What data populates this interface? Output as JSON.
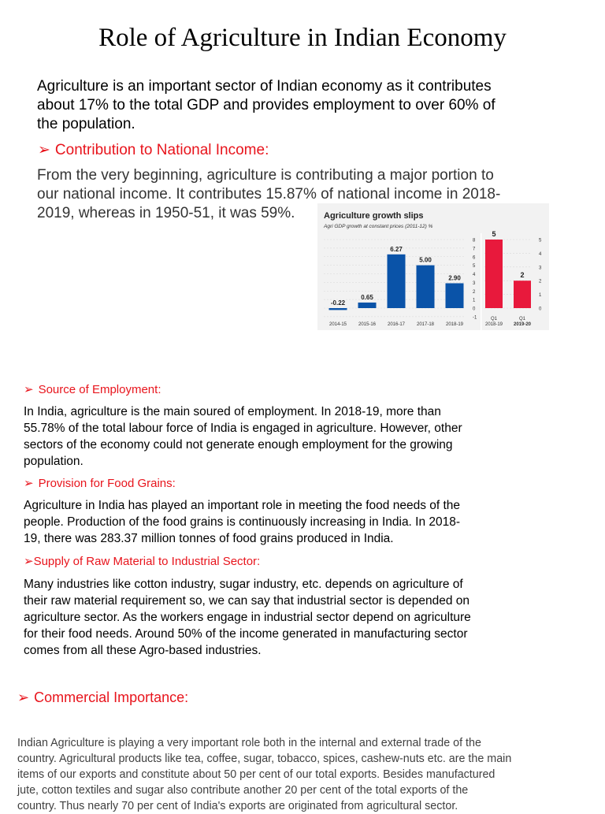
{
  "title": "Role of Agriculture in Indian Economy",
  "intro": [
    "Agriculture is an important sector of Indian economy as it contributes",
    "about 17% to the total GDP and provides employment to over 60% of",
    "the population."
  ],
  "sections": [
    {
      "heading": "Contribution to National Income:",
      "lines": [
        "From the very beginning, agriculture is contributing a major portion to",
        "our national income. It contributes 15.87% of national income in 2018-",
        "2019, whereas in 1950-51, it was 59%."
      ]
    },
    {
      "heading": "Source of Employment:",
      "lines": [
        "In India, agriculture is the main soured of employment. In 2018-19, more than",
        "55.78% of the total labour force of India is engaged in agriculture. However, other",
        "sectors of the economy could not generate enough employment for the growing",
        "population."
      ]
    },
    {
      "heading": "Provision for Food Grains:",
      "lines": [
        "Agriculture in India has played an important role in meeting the food needs of the",
        "people. Production of the food grains is continuously increasing in India. In 2018-",
        "19, there was 283.37 million tonnes of food grains produced in India."
      ]
    },
    {
      "heading": "Supply of Raw Material to Industrial Sector:",
      "lines": [
        "Many industries like cotton industry, sugar industry, etc. depends on agriculture of",
        "their raw material requirement so, we can say that industrial sector is depended on",
        "agriculture sector. As the  workers engage in industrial sector depend on agriculture",
        "for their food needs. Around 50% of the income generated in manufacturing sector",
        "comes from all these Agro-based industries."
      ]
    },
    {
      "heading": "Commercial Importance:",
      "lines": [
        "Indian Agriculture is playing a very important role both in the internal and external trade of the",
        "country. Agricultural products like tea, coffee, sugar, tobacco, spices, cashew-nuts etc. are the main",
        "items of our exports and constitute about 50 per cent of our total exports. Besides manufactured",
        "jute, cotton textiles and sugar also contribute another 20 per cent of the total exports of the",
        "country. Thus nearly 70 per cent of India's exports are originated from agricultural sector."
      ]
    }
  ],
  "bullet_glyph": "➢",
  "colors": {
    "heading": "#e8141c",
    "bar_annual": "#0a53a8",
    "bar_quarterly": "#e8193c"
  },
  "chart_data": [
    {
      "type": "bar",
      "title": "Agriculture growth slips",
      "subtitle": "Agri GDP growth at constant prices (2011-12) %",
      "categories": [
        "2014-15",
        "2015-16",
        "2016-17",
        "2017-18",
        "2018-19"
      ],
      "values": [
        -0.22,
        0.65,
        6.27,
        5.0,
        2.9
      ],
      "labels": [
        "-0.22",
        "0.65",
        "6.27",
        "5.00",
        "2.90"
      ],
      "ylim": [
        -1,
        8
      ],
      "yticks": [
        "-1",
        "0",
        "1",
        "2",
        "3",
        "4",
        "5",
        "6",
        "7",
        "8"
      ],
      "grid": true
    },
    {
      "type": "bar",
      "categories": [
        [
          "Q1",
          "2018-19"
        ],
        [
          "Q1",
          "2019-20"
        ]
      ],
      "values": [
        5,
        2
      ],
      "labels": [
        "5",
        "2"
      ],
      "ylim": [
        0,
        5
      ],
      "yticks": [
        "0",
        "1",
        "2",
        "3",
        "4",
        "5"
      ],
      "grid": true
    }
  ]
}
